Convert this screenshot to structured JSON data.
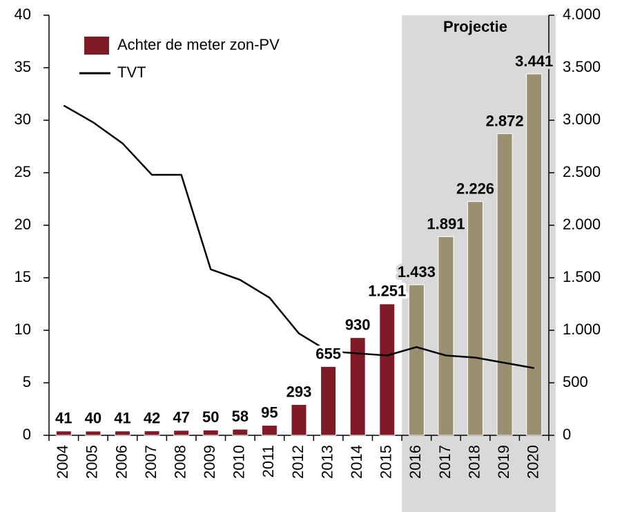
{
  "chart_data": {
    "type": "combo",
    "categories": [
      "2004",
      "2005",
      "2006",
      "2007",
      "2008",
      "2009",
      "2010",
      "2011",
      "2012",
      "2013",
      "2014",
      "2015",
      "2016",
      "2017",
      "2018",
      "2019",
      "2020"
    ],
    "series": [
      {
        "name": "Achter de meter zon-PV",
        "type": "bar",
        "axis": "y2",
        "color": "#7f1a27",
        "colors": [
          "#7f1a27",
          "#7f1a27",
          "#7f1a27",
          "#7f1a27",
          "#7f1a27",
          "#7f1a27",
          "#7f1a27",
          "#7f1a27",
          "#7f1a27",
          "#7f1a27",
          "#7f1a27",
          "#7f1a27",
          "#9a9070",
          "#9a9070",
          "#9a9070",
          "#9a9070",
          "#9a9070"
        ],
        "values": [
          41,
          40,
          41,
          42,
          47,
          50,
          58,
          95,
          293,
          655,
          930,
          1251,
          1433,
          1891,
          2226,
          2872,
          3441
        ],
        "value_labels": [
          "41",
          "40",
          "41",
          "42",
          "47",
          "50",
          "58",
          "95",
          "293",
          "655",
          "930",
          "1.251",
          "1.433",
          "1.891",
          "2.226",
          "2.872",
          "3.441"
        ]
      },
      {
        "name": "TVT",
        "type": "line",
        "color": "#000000",
        "values": [
          31.4,
          29.8,
          27.8,
          24.8,
          24.8,
          15.8,
          14.8,
          13.1,
          9.7,
          8.0,
          7.8,
          7.6,
          8.4,
          7.6,
          7.4,
          6.9,
          6.4
        ]
      }
    ],
    "annotation": {
      "text": "Projectie",
      "from": 12,
      "to": 16,
      "color": "#d9d9d9"
    },
    "ylim": [
      0,
      40
    ],
    "yticks": [
      0,
      5,
      10,
      15,
      20,
      25,
      30,
      35,
      40
    ],
    "y2lim": [
      0,
      4000
    ],
    "y2ticks": [
      0,
      500,
      {
        "value": 1000,
        "label": "1.000"
      },
      {
        "value": 1500,
        "label": "1.500"
      },
      {
        "value": 2000,
        "label": "2.000"
      },
      {
        "value": 2500,
        "label": "2.500"
      },
      {
        "value": 3000,
        "label": "3.000"
      },
      {
        "value": 3500,
        "label": "3.500"
      },
      {
        "value": 4000,
        "label": "4.000"
      }
    ],
    "grid": false,
    "legend": "top-left"
  }
}
